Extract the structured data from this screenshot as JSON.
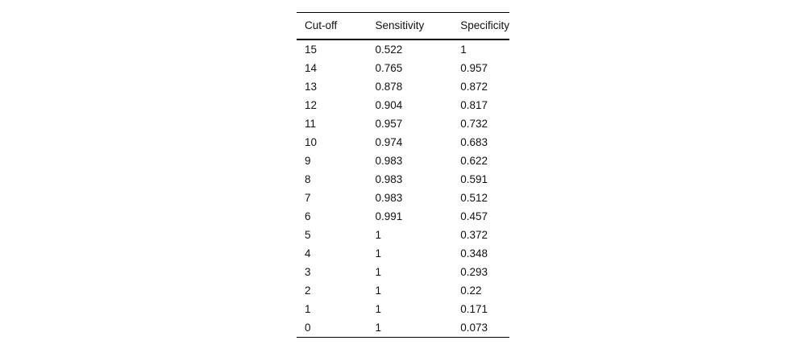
{
  "table": {
    "columns": [
      "Cut-off",
      "Sensitivity",
      "Specificity"
    ],
    "rows": [
      [
        "15",
        "0.522",
        "1"
      ],
      [
        "14",
        "0.765",
        "0.957"
      ],
      [
        "13",
        "0.878",
        "0.872"
      ],
      [
        "12",
        "0.904",
        "0.817"
      ],
      [
        "11",
        "0.957",
        "0.732"
      ],
      [
        "10",
        "0.974",
        "0.683"
      ],
      [
        "9",
        "0.983",
        "0.622"
      ],
      [
        "8",
        "0.983",
        "0.591"
      ],
      [
        "7",
        "0.983",
        "0.512"
      ],
      [
        "6",
        "0.991",
        "0.457"
      ],
      [
        "5",
        "1",
        "0.372"
      ],
      [
        "4",
        "1",
        "0.348"
      ],
      [
        "3",
        "1",
        "0.293"
      ],
      [
        "2",
        "1",
        "0.22"
      ],
      [
        "1",
        "1",
        "0.171"
      ],
      [
        "0",
        "1",
        "0.073"
      ]
    ],
    "colors": {
      "text": "#111111",
      "rule": "#000000",
      "background": "#ffffff"
    }
  },
  "chart_data": {
    "type": "table",
    "title": "",
    "columns": [
      "Cut-off",
      "Sensitivity",
      "Specificity"
    ],
    "cutoff": [
      15,
      14,
      13,
      12,
      11,
      10,
      9,
      8,
      7,
      6,
      5,
      4,
      3,
      2,
      1,
      0
    ],
    "series": [
      {
        "name": "Sensitivity",
        "values": [
          0.522,
          0.765,
          0.878,
          0.904,
          0.957,
          0.974,
          0.983,
          0.983,
          0.983,
          0.991,
          1,
          1,
          1,
          1,
          1,
          1
        ]
      },
      {
        "name": "Specificity",
        "values": [
          1,
          0.957,
          0.872,
          0.817,
          0.732,
          0.683,
          0.622,
          0.591,
          0.512,
          0.457,
          0.372,
          0.348,
          0.293,
          0.22,
          0.171,
          0.073
        ]
      }
    ],
    "layout": {
      "header_align": "left",
      "cell_align": "left",
      "rules": [
        "top",
        "below-header",
        "bottom"
      ]
    }
  }
}
